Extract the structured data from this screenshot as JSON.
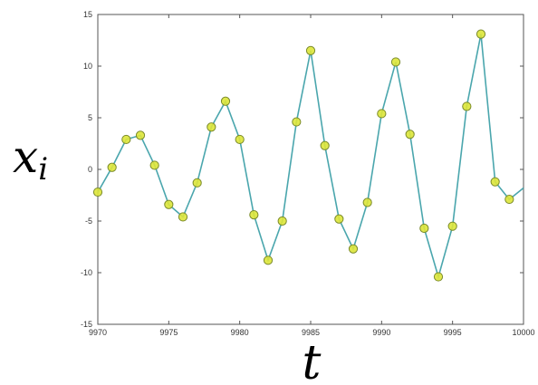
{
  "chart_data": {
    "type": "line",
    "title": "",
    "xlabel": "t",
    "ylabel_main": "x",
    "ylabel_sub": "i",
    "xlim": [
      9970,
      10000
    ],
    "ylim": [
      -15,
      15
    ],
    "xticks": [
      9970,
      9975,
      9980,
      9985,
      9990,
      9995,
      10000
    ],
    "xtick_labels": [
      "9970",
      "9975",
      "9980",
      "9985",
      "9990",
      "9995",
      "10000"
    ],
    "yticks": [
      -15,
      -10,
      -5,
      0,
      5,
      10,
      15
    ],
    "ytick_labels": [
      "-15",
      "-10",
      "-5",
      "0",
      "5",
      "10",
      "15"
    ],
    "grid": false,
    "colors": {
      "line": "#4aa6ad",
      "marker_fill": "#dde63a",
      "marker_edge": "#7a8a2a",
      "axis": "#555555"
    },
    "series": [
      {
        "x": [
          9970,
          9971,
          9972,
          9973,
          9974,
          9975,
          9976,
          9977,
          9978,
          9979,
          9980,
          9981,
          9982,
          9983,
          9984,
          9985,
          9986,
          9987,
          9988,
          9989,
          9990,
          9991,
          9992,
          9993,
          9994,
          9995,
          9996,
          9997,
          9998,
          9999
        ],
        "y": [
          -2.2,
          0.2,
          2.9,
          3.3,
          0.4,
          -3.4,
          -4.6,
          -1.3,
          4.1,
          6.6,
          2.9,
          -4.4,
          -8.8,
          -5.0,
          4.6,
          11.5,
          2.3,
          -4.8,
          -7.7,
          -3.2,
          5.4,
          10.4,
          3.4,
          -5.7,
          -10.4,
          -5.5,
          6.1,
          13.1,
          -1.2,
          -2.9
        ]
      }
    ],
    "line_end": {
      "x": 10000,
      "y": -1.8
    }
  }
}
